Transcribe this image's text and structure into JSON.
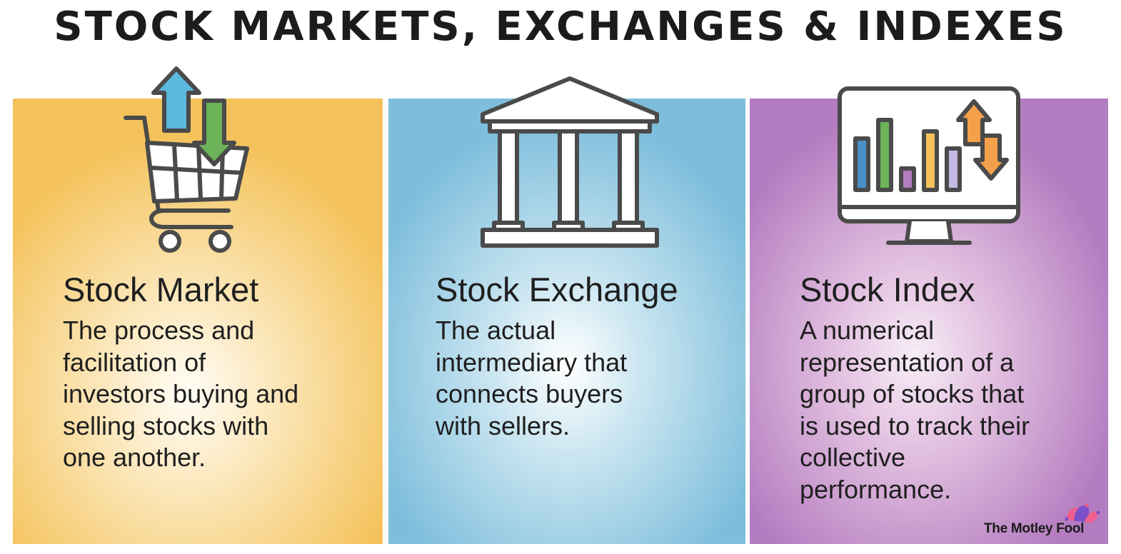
{
  "title": "STOCK MARKETS, EXCHANGES & INDEXES",
  "panels": [
    {
      "heading": "Stock Market",
      "body_lines": [
        "The process and",
        "facilitation of",
        "investors buying and",
        "selling stocks with",
        "one another."
      ],
      "icon": "shopping-cart-up-down-arrows-icon",
      "color": "#f4c25a"
    },
    {
      "heading": "Stock Exchange",
      "body_lines": [
        "The actual",
        "intermediary that",
        "connects buyers",
        "with sellers."
      ],
      "icon": "bank-building-icon",
      "color": "#7ebedc"
    },
    {
      "heading": "Stock Index",
      "body_lines": [
        "A numerical",
        "representation of a",
        "group of stocks that",
        "is used to track their",
        "collective",
        "performance."
      ],
      "icon": "monitor-bar-chart-icon",
      "color": "#b47cc0"
    }
  ],
  "brand": {
    "name": "The Motley Fool",
    "icon": "jester-cap-icon"
  }
}
